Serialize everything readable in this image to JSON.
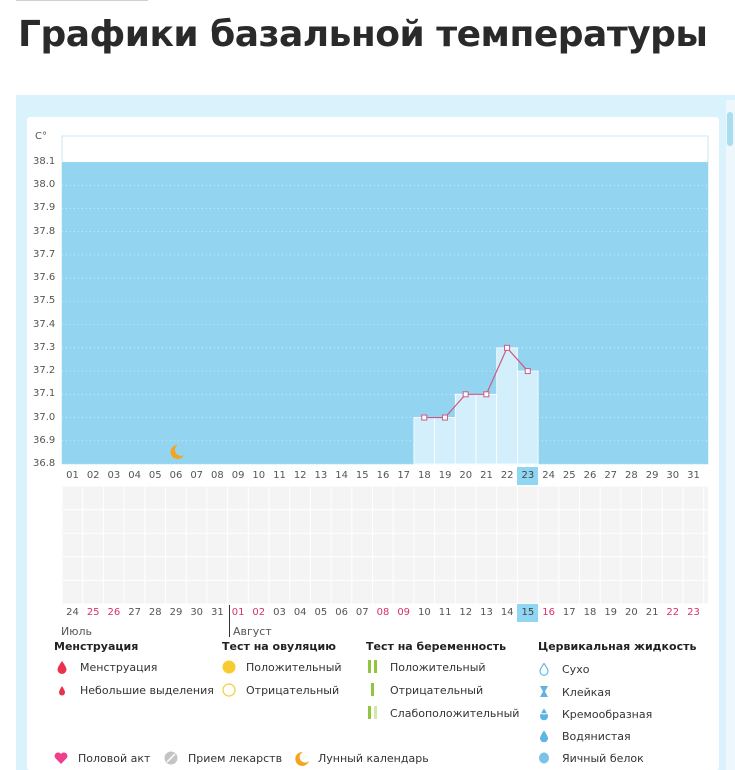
{
  "page_title": "Графики базальной температуры",
  "chart_data": {
    "type": "line",
    "ylabel": "C°",
    "y_ticks": [
      "38.1",
      "38.0",
      "37.9",
      "37.8",
      "37.7",
      "37.6",
      "37.5",
      "37.4",
      "37.3",
      "37.2",
      "37.1",
      "37.0",
      "36.9",
      "36.8"
    ],
    "ylim": [
      36.8,
      38.1
    ],
    "cycle_days": [
      "01",
      "02",
      "03",
      "04",
      "05",
      "06",
      "07",
      "08",
      "09",
      "10",
      "11",
      "12",
      "13",
      "14",
      "15",
      "16",
      "17",
      "18",
      "19",
      "20",
      "21",
      "22",
      "23",
      "24",
      "25",
      "26",
      "27",
      "28",
      "29",
      "30",
      "31"
    ],
    "current_cycle_day": "23",
    "series": [
      {
        "x": [
          "18",
          "19",
          "20",
          "21",
          "22",
          "23"
        ],
        "values": [
          37.0,
          37.0,
          37.1,
          37.1,
          37.3,
          37.2
        ]
      }
    ],
    "moon_marker_day": "06",
    "grid": true
  },
  "calendar": {
    "dates": [
      {
        "d": "24",
        "w": false
      },
      {
        "d": "25",
        "w": true
      },
      {
        "d": "26",
        "w": true
      },
      {
        "d": "27",
        "w": false
      },
      {
        "d": "28",
        "w": false
      },
      {
        "d": "29",
        "w": false
      },
      {
        "d": "30",
        "w": false
      },
      {
        "d": "31",
        "w": false
      },
      {
        "d": "01",
        "w": true
      },
      {
        "d": "02",
        "w": true
      },
      {
        "d": "03",
        "w": false
      },
      {
        "d": "04",
        "w": false
      },
      {
        "d": "05",
        "w": false
      },
      {
        "d": "06",
        "w": false
      },
      {
        "d": "07",
        "w": false
      },
      {
        "d": "08",
        "w": true
      },
      {
        "d": "09",
        "w": true
      },
      {
        "d": "10",
        "w": false
      },
      {
        "d": "11",
        "w": false
      },
      {
        "d": "12",
        "w": false
      },
      {
        "d": "13",
        "w": false
      },
      {
        "d": "14",
        "w": false
      },
      {
        "d": "15",
        "w": false,
        "today": true
      },
      {
        "d": "16",
        "w": true
      },
      {
        "d": "17",
        "w": false
      },
      {
        "d": "18",
        "w": false
      },
      {
        "d": "19",
        "w": false
      },
      {
        "d": "20",
        "w": false
      },
      {
        "d": "21",
        "w": false
      },
      {
        "d": "22",
        "w": true
      },
      {
        "d": "23",
        "w": true
      }
    ],
    "month_prev": "Июль",
    "month_next": "Август"
  },
  "legend": {
    "menstruation": {
      "title": "Менструация",
      "items": [
        "Менструация",
        "Небольшие выделения"
      ]
    },
    "ovulation_test": {
      "title": "Тест на овуляцию",
      "items": [
        "Положительный",
        "Отрицательный"
      ]
    },
    "pregnancy_test": {
      "title": "Тест на беременность",
      "items": [
        "Положительный",
        "Отрицательный",
        "Слабоположительный"
      ]
    },
    "cervical_fluid": {
      "title": "Цервикальная жидкость",
      "items": [
        "Сухо",
        "Клейкая",
        "Кремообразная",
        "Водянистая",
        "Яичный белок"
      ]
    },
    "other": [
      "Половой акт",
      "Прием лекарств",
      "Лунный календарь"
    ]
  },
  "colors": {
    "chart_bg": "#93d5f1",
    "bar_fill": "#d3effc",
    "line": "#cc5a84",
    "weekend": "#d9316b",
    "today": "#8fd6f2",
    "moon": "#f4a51f",
    "menstruation": "#e8334a",
    "ovulation_positive": "#f7cc2f",
    "pregnancy": "#8fc63d",
    "fluid": "#5fb4e3",
    "intercourse": "#ef3f8b",
    "medication": "#bbbbbb"
  }
}
